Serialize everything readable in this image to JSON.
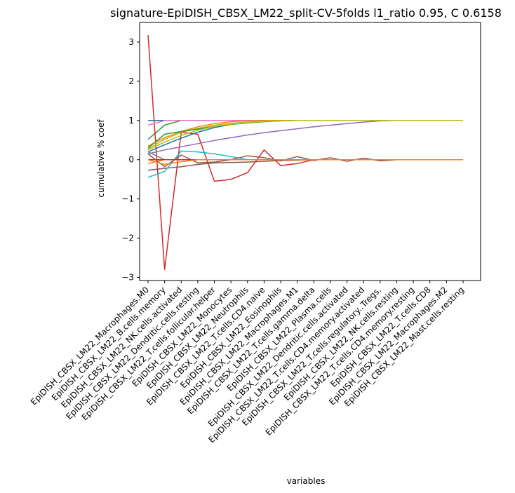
{
  "chart_data": {
    "type": "line",
    "title": "signature-EpiDISH_CBSX_LM22_split-CV-5folds l1_ratio 0.95, C 0.6158",
    "xlabel": "variables",
    "ylabel": "cumulative % coef",
    "ylim": [
      -3.08,
      3.5
    ],
    "yticks": [
      -3,
      -2,
      -1,
      0,
      1,
      2,
      3
    ],
    "ytick_labels": [
      "−3",
      "−2",
      "−1",
      "0",
      "1",
      "2",
      "3"
    ],
    "grid": false,
    "legend": "none",
    "categories": [
      "EpiDISH_CBSX_LM22_Macrophages.M0",
      "EpiDISH_CBSX_LM22_B.cells.memory",
      "EpiDISH_CBSX_LM22_NK.cells.activated",
      "EpiDISH_CBSX_LM22_Dendritic.cells.resting",
      "EpiDISH_CBSX_LM22_T.cells.follicular.helper",
      "EpiDISH_CBSX_LM22_Monocytes",
      "EpiDISH_CBSX_LM22_Neutrophils",
      "EpiDISH_CBSX_LM22_T.cells.CD4.naive",
      "EpiDISH_CBSX_LM22_Eosinophils",
      "EpiDISH_CBSX_LM22_Macrophages.M1",
      "EpiDISH_CBSX_LM22_T.cells.gamma.delta",
      "EpiDISH_CBSX_LM22_Plasma.cells",
      "EpiDISH_CBSX_LM22_Dendritic.cells.activated",
      "EpiDISH_CBSX_LM22_T.cells.CD4.memory.activated",
      "EpiDISH_CBSX_LM22_T.cells.regulatory..Tregs.",
      "EpiDISH_CBSX_LM22_NK.cells.resting",
      "EpiDISH_CBSX_LM22_T.cells.CD4.memory.resting",
      "EpiDISH_CBSX_LM22_T.cells.CD8",
      "EpiDISH_CBSX_LM22_Macrophages.M2",
      "EpiDISH_CBSX_LM22_Mast.cells.resting"
    ],
    "series": [
      {
        "color": "#1f77b4",
        "values": [
          1.0,
          1.0,
          1.0,
          1.0,
          1.0,
          1.0,
          1.0,
          1.0,
          1.0,
          1.0,
          1.0,
          1.0,
          1.0,
          1.0,
          1.0,
          1.0,
          1.0,
          1.0,
          1.0,
          1.0
        ]
      },
      {
        "color": "#ff7f0e",
        "values": [
          -0.1,
          0.0,
          0.0,
          0.0,
          0.0,
          0.0,
          0.0,
          0.0,
          0.0,
          0.0,
          0.0,
          0.0,
          0.0,
          0.0,
          0.0,
          0.0,
          0.0,
          0.0,
          0.0,
          0.0
        ]
      },
      {
        "color": "#2ca02c",
        "values": [
          0.52,
          0.88,
          1.0,
          1.0,
          1.0,
          1.0,
          1.0,
          1.0,
          1.0,
          1.0,
          1.0,
          1.0,
          1.0,
          1.0,
          1.0,
          1.0,
          1.0,
          1.0,
          1.0,
          1.0
        ]
      },
      {
        "color": "#d62728",
        "values": [
          3.18,
          -2.8,
          0.7,
          0.65,
          -0.55,
          -0.5,
          -0.33,
          0.25,
          -0.15,
          -0.1,
          0.0,
          0.0,
          0.0,
          0.0,
          0.0,
          0.0,
          0.0,
          0.0,
          0.0,
          0.0
        ]
      },
      {
        "color": "#9467bd",
        "values": [
          0.15,
          0.25,
          0.33,
          0.41,
          0.49,
          0.56,
          0.63,
          0.69,
          0.74,
          0.79,
          0.84,
          0.88,
          0.92,
          0.96,
          0.99,
          1.0,
          1.0,
          1.0,
          1.0,
          1.0
        ]
      },
      {
        "color": "#8c564b",
        "values": [
          -0.27,
          -0.22,
          -0.18,
          -0.12,
          -0.08,
          -0.07,
          -0.06,
          -0.04,
          -0.02,
          -0.01,
          0.0,
          0.0,
          0.0,
          0.0,
          0.0,
          0.0,
          0.0,
          0.0,
          0.0,
          0.0
        ]
      },
      {
        "color": "#e377c2",
        "values": [
          0.88,
          1.0,
          1.0,
          1.0,
          1.0,
          1.0,
          1.0,
          1.0,
          1.0,
          1.0,
          1.0,
          1.0,
          1.0,
          1.0,
          1.0,
          1.0,
          1.0,
          1.0,
          1.0,
          1.0
        ]
      },
      {
        "color": "#7f7f7f",
        "values": [
          0.2,
          0.0,
          0.0,
          0.0,
          0.0,
          0.0,
          0.0,
          0.0,
          0.0,
          0.0,
          0.0,
          0.0,
          0.0,
          0.0,
          0.0,
          0.0,
          0.0,
          0.0,
          0.0,
          0.0
        ]
      },
      {
        "color": "#bcbd22",
        "values": [
          0.28,
          0.52,
          0.7,
          0.8,
          0.88,
          0.93,
          0.96,
          0.98,
          0.99,
          1.0,
          1.0,
          1.0,
          1.0,
          1.0,
          1.0,
          1.0,
          1.0,
          1.0,
          1.0,
          1.0
        ]
      },
      {
        "color": "#17becf",
        "values": [
          -0.45,
          -0.3,
          0.22,
          0.2,
          0.15,
          0.08,
          0.0,
          0.0,
          0.0,
          0.0,
          0.0,
          0.0,
          0.0,
          0.0,
          0.0,
          0.0,
          0.0,
          0.0,
          0.0,
          0.0
        ]
      },
      {
        "color": "#1f77b4",
        "values": [
          0.2,
          0.38,
          0.55,
          0.7,
          0.82,
          0.9,
          0.95,
          0.98,
          1.0,
          1.0,
          1.0,
          1.0,
          1.0,
          1.0,
          1.0,
          1.0,
          1.0,
          1.0,
          1.0,
          1.0
        ]
      },
      {
        "color": "#ff7f0e",
        "values": [
          0.35,
          0.56,
          0.72,
          0.84,
          0.92,
          0.97,
          0.99,
          1.0,
          1.0,
          1.0,
          1.0,
          1.0,
          1.0,
          1.0,
          1.0,
          1.0,
          1.0,
          1.0,
          1.0,
          1.0
        ]
      },
      {
        "color": "#2ca02c",
        "values": [
          0.3,
          0.65,
          0.72,
          0.78,
          0.85,
          0.9,
          0.94,
          0.97,
          0.99,
          1.0,
          1.0,
          1.0,
          1.0,
          1.0,
          1.0,
          1.0,
          1.0,
          1.0,
          1.0,
          1.0
        ]
      },
      {
        "color": "#d62728",
        "values": [
          0.0,
          0.0,
          0.0,
          0.0,
          0.0,
          0.0,
          0.0,
          0.0,
          0.0,
          0.0,
          0.0,
          0.0,
          0.0,
          0.0,
          0.0,
          0.0,
          0.0,
          0.0,
          0.0,
          0.0
        ]
      },
      {
        "color": "#8c564b",
        "values": [
          0.15,
          -0.18,
          0.12,
          -0.08,
          -0.06,
          0.0,
          0.1,
          0.05,
          -0.03,
          0.08,
          -0.02,
          0.05,
          -0.04,
          0.04,
          -0.03,
          0.0,
          0.0,
          0.0,
          0.0,
          0.0
        ]
      },
      {
        "color": "#bcbd22",
        "values": [
          0.25,
          0.45,
          0.62,
          0.75,
          0.85,
          0.91,
          0.95,
          0.98,
          0.99,
          1.0,
          1.0,
          1.0,
          1.0,
          1.0,
          1.0,
          1.0,
          1.0,
          1.0,
          1.0,
          1.0
        ]
      },
      {
        "color": "#ff7f0e",
        "values": [
          0.0,
          -0.12,
          -0.05,
          0.0,
          0.0,
          0.0,
          0.0,
          0.0,
          0.0,
          0.0,
          0.0,
          0.0,
          0.0,
          0.0,
          0.0,
          0.0,
          0.0,
          0.0,
          0.0,
          0.0
        ]
      }
    ]
  }
}
